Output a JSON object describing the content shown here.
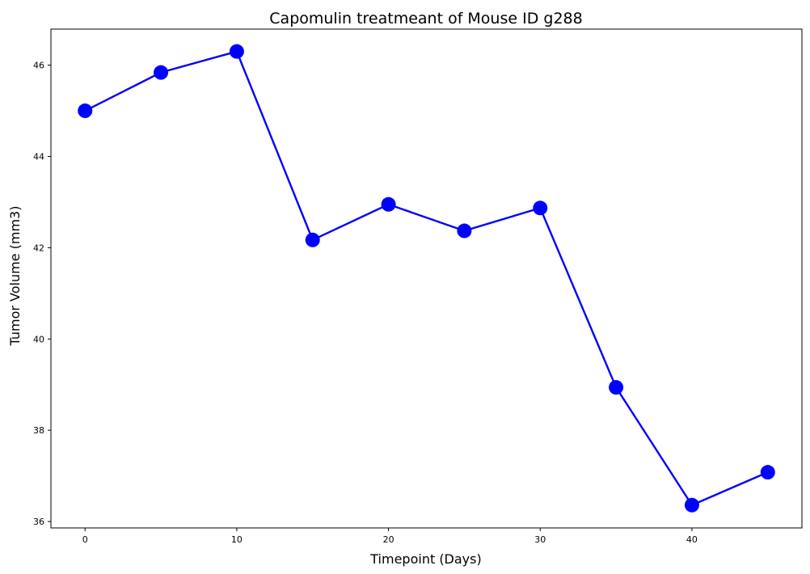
{
  "chart_data": {
    "type": "line",
    "title": "Capomulin treatmeant of Mouse ID g288",
    "xlabel": "Timepoint (Days)",
    "ylabel": "Tumor Volume (mm3)",
    "xlim": [
      -2.25,
      47.25
    ],
    "ylim": [
      35.86,
      46.79
    ],
    "x_ticks": [
      0,
      10,
      20,
      30,
      40
    ],
    "y_ticks": [
      36,
      38,
      40,
      42,
      44,
      46
    ],
    "grid": false,
    "legend": "none",
    "series": [
      {
        "x": [
          0,
          5,
          10,
          15,
          20,
          25,
          30,
          35,
          40,
          45
        ],
        "values": [
          45.0,
          45.84,
          46.3,
          42.17,
          42.95,
          42.37,
          42.87,
          38.94,
          36.36,
          37.08
        ],
        "color": "#0000ff",
        "marker": "circle"
      }
    ]
  }
}
